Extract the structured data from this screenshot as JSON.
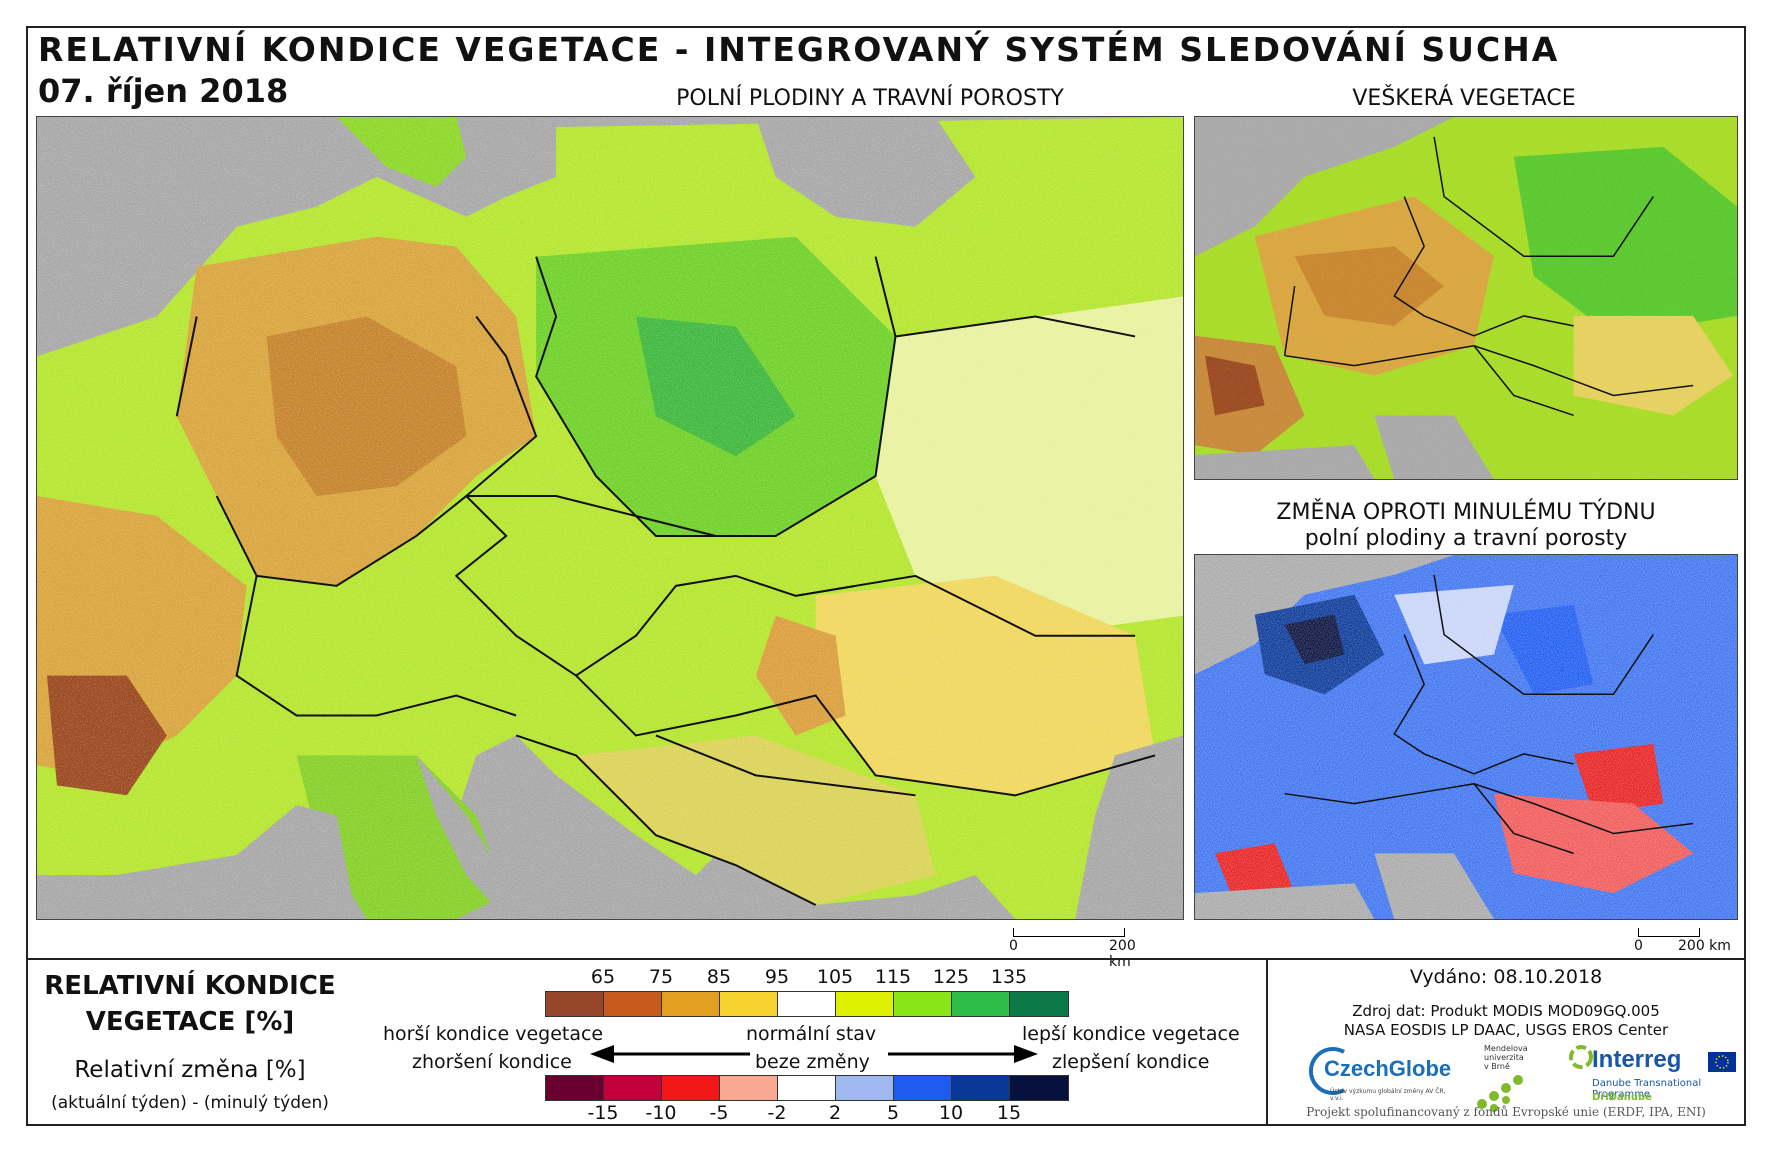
{
  "header": {
    "title": "RELATIVNÍ KONDICE VEGETACE - INTEGROVANÝ SYSTÉM SLEDOVÁNÍ SUCHA",
    "date": "07. říjen 2018"
  },
  "maps": {
    "main_label": "POLNÍ PLODINY A TRAVNÍ POROSTY",
    "all_veg_label": "VEŠKERÁ VEGETACE",
    "change_label_1": "ZMĚNA OPROTI MINULÉMU TÝDNU",
    "change_label_2": "polní plodiny a travní porosty"
  },
  "scalebar": {
    "zero": "0",
    "end": "200 km"
  },
  "legend": {
    "title_1": "RELATIVNÍ KONDICE",
    "title_2": "VEGETACE [%]",
    "sub_1": "Relativní změna [%]",
    "sub_2": "(aktuální týden) - (minulý týden)",
    "condition_ticks": [
      "65",
      "75",
      "85",
      "95",
      "105",
      "115",
      "125",
      "135"
    ],
    "condition_colors": [
      "#96472a",
      "#c85a20",
      "#e3a020",
      "#f7d330",
      "#ffffff",
      "#ddf000",
      "#88e618",
      "#2ebd48",
      "#0b7a48"
    ],
    "change_ticks": [
      "-15",
      "-10",
      "-5",
      "-2",
      "2",
      "5",
      "10",
      "15"
    ],
    "change_colors": [
      "#6a0030",
      "#c4003c",
      "#f21818",
      "#f8a890",
      "#ffffff",
      "#a0b8f0",
      "#1e5cf0",
      "#0a3898",
      "#08103e"
    ],
    "worse_condition": "horší kondice vegetace",
    "worse_change": "zhoršení kondice",
    "normal": "normální stav",
    "no_change": "beze změny",
    "better_condition": "lepší kondice vegetace",
    "better_change": "zlepšení kondice"
  },
  "info": {
    "issued": "Vydáno: 08.10.2018",
    "source_1": "Zdroj dat: Produkt MODIS MOD09GQ.005",
    "source_2": "NASA EOSDIS LP DAAC, USGS EROS Center",
    "funding": "Projekt spolufinancovaný z fondů Evropské unie (ERDF, IPA, ENI)"
  },
  "logos": {
    "czechglobe": "CzechGlobe",
    "czechglobe_sub": "Ústav výzkumu globální změny AV ČR, v.v.i.",
    "mendel_1": "Mendelova",
    "mendel_2": "univerzita",
    "mendel_3": "v Brně",
    "interreg": "Interreg",
    "interreg_sub": "Danube Transnational Programme",
    "dridanube": "DriDanube"
  }
}
